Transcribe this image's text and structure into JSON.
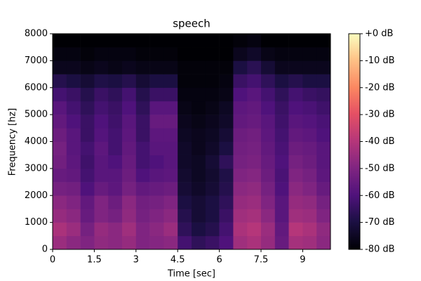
{
  "chart_data": {
    "type": "heatmap",
    "title": "speech",
    "x_label": "Time [sec]",
    "y_label": "Frequency [hz]",
    "colormap": "magma",
    "xbins": [
      0,
      0.5,
      1,
      1.5,
      2,
      2.5,
      3,
      3.5,
      4,
      4.5,
      5,
      5.5,
      6,
      6.5,
      7,
      7.5,
      8,
      8.5,
      9,
      9.5,
      10
    ],
    "ybins": [
      0,
      500,
      1000,
      1500,
      2000,
      2500,
      3000,
      3500,
      4000,
      4500,
      5000,
      5500,
      6000,
      6500,
      7000,
      7500,
      8000
    ],
    "z": [
      [
        -45,
        -48,
        -50,
        -47,
        -48,
        -46,
        -50,
        -49,
        -48,
        -62,
        -66,
        -64,
        -60,
        -44,
        -42,
        -46,
        -55,
        -43,
        -44,
        -48
      ],
      [
        -42,
        -45,
        -52,
        -46,
        -48,
        -44,
        -50,
        -48,
        -45,
        -66,
        -70,
        -68,
        -62,
        -42,
        -40,
        -45,
        -56,
        -40,
        -42,
        -47
      ],
      [
        -46,
        -48,
        -55,
        -50,
        -52,
        -47,
        -52,
        -50,
        -48,
        -68,
        -72,
        -70,
        -64,
        -44,
        -43,
        -48,
        -58,
        -44,
        -45,
        -50
      ],
      [
        -48,
        -50,
        -56,
        -50,
        -54,
        -48,
        -53,
        -52,
        -50,
        -70,
        -72,
        -70,
        -66,
        -46,
        -45,
        -50,
        -58,
        -46,
        -47,
        -52
      ],
      [
        -52,
        -53,
        -60,
        -55,
        -57,
        -52,
        -56,
        -55,
        -54,
        -72,
        -74,
        -72,
        -68,
        -48,
        -47,
        -52,
        -60,
        -48,
        -50,
        -55
      ],
      [
        -55,
        -56,
        -62,
        -58,
        -58,
        -54,
        -60,
        -58,
        -57,
        -73,
        -75,
        -73,
        -69,
        -50,
        -49,
        -54,
        -61,
        -50,
        -52,
        -57
      ],
      [
        -53,
        -57,
        -63,
        -58,
        -60,
        -55,
        -62,
        -60,
        -58,
        -74,
        -75,
        -72,
        -66,
        -52,
        -51,
        -55,
        -60,
        -52,
        -54,
        -58
      ],
      [
        -52,
        -58,
        -62,
        -57,
        -62,
        -56,
        -62,
        -58,
        -58,
        -74,
        -76,
        -74,
        -70,
        -53,
        -52,
        -56,
        -61,
        -54,
        -55,
        -58
      ],
      [
        -54,
        -58,
        -64,
        -59,
        -62,
        -57,
        -64,
        -57,
        -57,
        -75,
        -76,
        -75,
        -72,
        -54,
        -53,
        -57,
        -62,
        -56,
        -57,
        -60
      ],
      [
        -56,
        -60,
        -64,
        -60,
        -63,
        -58,
        -64,
        -55,
        -55,
        -76,
        -77,
        -76,
        -74,
        -56,
        -55,
        -58,
        -63,
        -58,
        -59,
        -61
      ],
      [
        -58,
        -62,
        -66,
        -62,
        -64,
        -60,
        -66,
        -58,
        -58,
        -77,
        -78,
        -77,
        -75,
        -57,
        -56,
        -60,
        -64,
        -60,
        -61,
        -63
      ],
      [
        -62,
        -64,
        -68,
        -64,
        -66,
        -62,
        -68,
        -64,
        -64,
        -78,
        -78,
        -78,
        -77,
        -60,
        -58,
        -62,
        -66,
        -62,
        -64,
        -65
      ],
      [
        -68,
        -70,
        -72,
        -69,
        -70,
        -68,
        -72,
        -70,
        -70,
        -79,
        -79,
        -79,
        -78,
        -64,
        -62,
        -66,
        -70,
        -68,
        -70,
        -70
      ],
      [
        -76,
        -76,
        -77,
        -76,
        -77,
        -76,
        -77,
        -77,
        -77,
        -79,
        -79,
        -79,
        -79,
        -70,
        -67,
        -72,
        -76,
        -76,
        -76,
        -76
      ],
      [
        -78,
        -78,
        -79,
        -78,
        -78,
        -78,
        -79,
        -79,
        -79,
        -80,
        -80,
        -80,
        -80,
        -76,
        -74,
        -77,
        -78,
        -78,
        -78,
        -78
      ],
      [
        -80,
        -80,
        -80,
        -80,
        -80,
        -80,
        -80,
        -80,
        -80,
        -80,
        -80,
        -80,
        -80,
        -79,
        -78,
        -80,
        -80,
        -80,
        -80,
        -80
      ]
    ],
    "xlim": [
      0,
      10
    ],
    "xticks": [
      0,
      1.5,
      3,
      4.5,
      6,
      7.5,
      9
    ],
    "ylim": [
      0,
      8000
    ],
    "yticks": [
      0,
      1000,
      2000,
      3000,
      4000,
      5000,
      6000,
      7000,
      8000
    ],
    "clim": [
      -80,
      0
    ],
    "cticks": [
      {
        "value": 0,
        "label": "+0 dB"
      },
      {
        "value": -10,
        "label": "-10 dB"
      },
      {
        "value": -20,
        "label": "-20 dB"
      },
      {
        "value": -30,
        "label": "-30 dB"
      },
      {
        "value": -40,
        "label": "-40 dB"
      },
      {
        "value": -50,
        "label": "-50 dB"
      },
      {
        "value": -60,
        "label": "-60 dB"
      },
      {
        "value": -70,
        "label": "-70 dB"
      },
      {
        "value": -80,
        "label": "-80 dB"
      }
    ]
  }
}
